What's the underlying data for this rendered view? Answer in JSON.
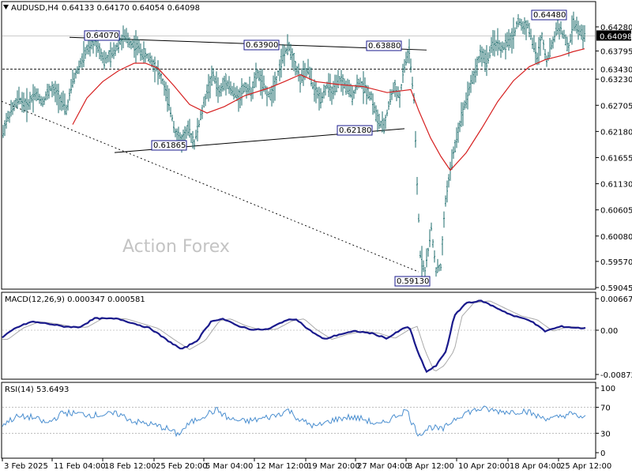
{
  "header": {
    "title": "AUDUSD,H4",
    "ohlc": "0.64133 0.64170 0.64054 0.64098"
  },
  "watermark": "Action Forex",
  "colors": {
    "candle": "#1f6e6e",
    "ma": "#d62020",
    "macd": "#1a1a8c",
    "signal": "#a9a9a9",
    "rsi": "#4b8fd0",
    "frame": "#000000"
  },
  "chart_data": {
    "type": "line",
    "x_ticks": [
      "3 Feb 2025",
      "11 Feb 04:00",
      "18 Feb 12:00",
      "25 Feb 20:00",
      "5 Mar 04:00",
      "12 Mar 12:00",
      "19 Mar 20:00",
      "27 Mar 04:00",
      "3 Apr 12:00",
      "10 Apr 20:00",
      "18 Apr 04:00",
      "25 Apr 12:00"
    ],
    "price_axis": {
      "ticks": [
        "0.64280",
        "0.63795",
        "0.63230",
        "0.62705",
        "0.62180",
        "0.61655",
        "0.61130",
        "0.60605",
        "0.60080",
        "0.59570",
        "0.59045"
      ],
      "current": "0.64098",
      "reference": "0.63430"
    },
    "levels": {
      "0.64070": "0.64070",
      "0.63900": "0.63900",
      "0.63880": "0.63880",
      "0.64480": "0.64480",
      "0.61865": "0.61865",
      "0.62180": "0.62180",
      "0.59130": "0.59130"
    },
    "price_path": [
      [
        0,
        0.6178
      ],
      [
        6,
        0.6232
      ],
      [
        14,
        0.6258
      ],
      [
        24,
        0.6284
      ],
      [
        34,
        0.627
      ],
      [
        44,
        0.6295
      ],
      [
        54,
        0.6278
      ],
      [
        64,
        0.6305
      ],
      [
        74,
        0.629
      ],
      [
        84,
        0.626
      ],
      [
        92,
        0.6318
      ],
      [
        102,
        0.6355
      ],
      [
        112,
        0.6388
      ],
      [
        122,
        0.64
      ],
      [
        132,
        0.636
      ],
      [
        142,
        0.6372
      ],
      [
        150,
        0.6395
      ],
      [
        158,
        0.6407
      ],
      [
        166,
        0.6395
      ],
      [
        174,
        0.6388
      ],
      [
        182,
        0.6372
      ],
      [
        190,
        0.6365
      ],
      [
        198,
        0.6345
      ],
      [
        206,
        0.6318
      ],
      [
        214,
        0.6272
      ],
      [
        222,
        0.6218
      ],
      [
        230,
        0.62
      ],
      [
        238,
        0.6222
      ],
      [
        246,
        0.6196
      ],
      [
        254,
        0.6246
      ],
      [
        262,
        0.6298
      ],
      [
        270,
        0.633
      ],
      [
        278,
        0.6296
      ],
      [
        286,
        0.6322
      ],
      [
        294,
        0.6298
      ],
      [
        302,
        0.6288
      ],
      [
        310,
        0.6308
      ],
      [
        318,
        0.6298
      ],
      [
        326,
        0.6335
      ],
      [
        334,
        0.6305
      ],
      [
        342,
        0.6288
      ],
      [
        350,
        0.6325
      ],
      [
        358,
        0.6368
      ],
      [
        366,
        0.6388
      ],
      [
        372,
        0.6362
      ],
      [
        380,
        0.6322
      ],
      [
        390,
        0.6342
      ],
      [
        398,
        0.63
      ],
      [
        406,
        0.6285
      ],
      [
        414,
        0.631
      ],
      [
        422,
        0.6295
      ],
      [
        430,
        0.6322
      ],
      [
        438,
        0.6308
      ],
      [
        446,
        0.629
      ],
      [
        454,
        0.6318
      ],
      [
        462,
        0.6305
      ],
      [
        470,
        0.6288
      ],
      [
        478,
        0.624
      ],
      [
        486,
        0.6225
      ],
      [
        494,
        0.6285
      ],
      [
        500,
        0.6308
      ],
      [
        506,
        0.6285
      ],
      [
        512,
        0.635
      ],
      [
        518,
        0.638
      ],
      [
        524,
        0.628
      ],
      [
        528,
        0.611
      ],
      [
        532,
        0.5972
      ],
      [
        538,
        0.5935
      ],
      [
        546,
        0.6022
      ],
      [
        552,
        0.594
      ],
      [
        558,
        0.5945
      ],
      [
        564,
        0.608
      ],
      [
        570,
        0.614
      ],
      [
        578,
        0.6205
      ],
      [
        586,
        0.626
      ],
      [
        594,
        0.6305
      ],
      [
        602,
        0.634
      ],
      [
        608,
        0.6375
      ],
      [
        616,
        0.636
      ],
      [
        626,
        0.6398
      ],
      [
        636,
        0.6384
      ],
      [
        644,
        0.6398
      ],
      [
        650,
        0.6412
      ],
      [
        656,
        0.644
      ],
      [
        662,
        0.6428
      ],
      [
        668,
        0.6432
      ],
      [
        674,
        0.6398
      ],
      [
        680,
        0.6365
      ],
      [
        686,
        0.641
      ],
      [
        692,
        0.636
      ],
      [
        700,
        0.6398
      ],
      [
        706,
        0.6432
      ],
      [
        714,
        0.6408
      ],
      [
        720,
        0.6384
      ],
      [
        726,
        0.644
      ],
      [
        732,
        0.642
      ],
      [
        740,
        0.641
      ]
    ],
    "ma_path": [
      [
        92,
        0.6232
      ],
      [
        110,
        0.6285
      ],
      [
        130,
        0.6318
      ],
      [
        150,
        0.634
      ],
      [
        170,
        0.6355
      ],
      [
        184,
        0.6355
      ],
      [
        200,
        0.6345
      ],
      [
        220,
        0.631
      ],
      [
        240,
        0.6272
      ],
      [
        262,
        0.6255
      ],
      [
        284,
        0.6268
      ],
      [
        310,
        0.629
      ],
      [
        340,
        0.6305
      ],
      [
        360,
        0.6318
      ],
      [
        380,
        0.6332
      ],
      [
        400,
        0.6318
      ],
      [
        430,
        0.6312
      ],
      [
        460,
        0.6308
      ],
      [
        490,
        0.6296
      ],
      [
        510,
        0.63
      ],
      [
        520,
        0.6302
      ],
      [
        530,
        0.626
      ],
      [
        545,
        0.6205
      ],
      [
        558,
        0.6168
      ],
      [
        570,
        0.614
      ],
      [
        590,
        0.6175
      ],
      [
        610,
        0.6225
      ],
      [
        630,
        0.6278
      ],
      [
        650,
        0.632
      ],
      [
        670,
        0.6348
      ],
      [
        690,
        0.6362
      ],
      [
        710,
        0.637
      ],
      [
        725,
        0.6378
      ],
      [
        740,
        0.6384
      ]
    ],
    "macd": {
      "label": "MACD(12,26,9) 0.000347 0.000581",
      "ticks": [
        "0.006675",
        "0.00",
        "-0.008724"
      ]
    },
    "rsi": {
      "label": "RSI(14) 53.6493",
      "ticks": [
        "100",
        "70",
        "30",
        "0"
      ]
    }
  }
}
